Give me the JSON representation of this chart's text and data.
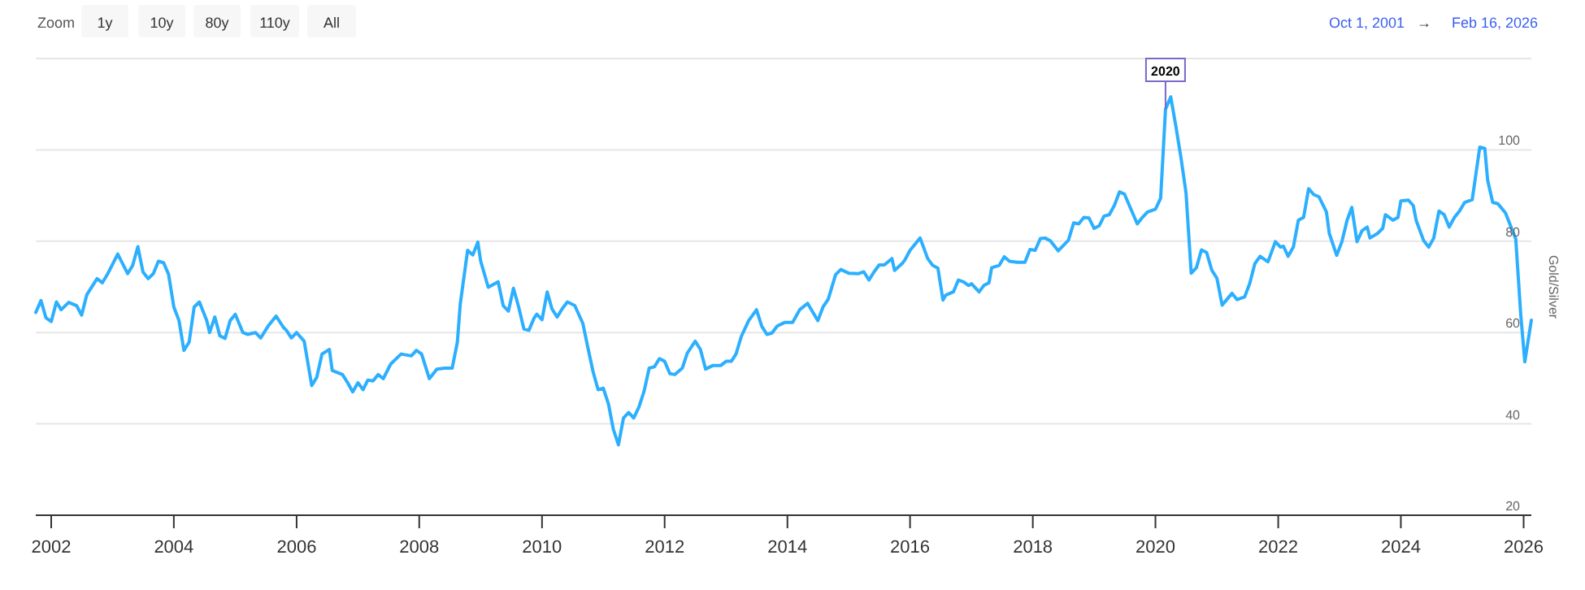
{
  "chart_data": {
    "type": "line",
    "ylabel": "Gold/Silver",
    "x": [
      "2001-10-01",
      "2001-11-01",
      "2001-12-01",
      "2002-01-01",
      "2002-02-01",
      "2002-03-01",
      "2002-04-15",
      "2002-06-01",
      "2002-07-01",
      "2002-08-01",
      "2002-10-01",
      "2002-11-01",
      "2002-12-01",
      "2003-02-01",
      "2003-04-01",
      "2003-05-01",
      "2003-06-01",
      "2003-07-01",
      "2003-08-01",
      "2003-09-01",
      "2003-10-01",
      "2003-11-01",
      "2003-12-01",
      "2004-01-01",
      "2004-02-01",
      "2004-03-01",
      "2004-04-01",
      "2004-05-01",
      "2004-06-01",
      "2004-07-15",
      "2004-08-01",
      "2004-09-01",
      "2004-10-01",
      "2004-11-01",
      "2004-12-01",
      "2005-01-01",
      "2005-02-15",
      "2005-03-15",
      "2005-05-01",
      "2005-06-01",
      "2005-07-15",
      "2005-09-01",
      "2005-10-15",
      "2005-11-01",
      "2005-12-01",
      "2006-01-01",
      "2006-02-15",
      "2006-04-01",
      "2006-05-01",
      "2006-06-01",
      "2006-07-15",
      "2006-08-01",
      "2006-10-01",
      "2006-11-01",
      "2006-12-01",
      "2007-01-01",
      "2007-02-01",
      "2007-03-01",
      "2007-04-01",
      "2007-05-01",
      "2007-06-01",
      "2007-07-15",
      "2007-09-15",
      "2007-11-15",
      "2007-12-15",
      "2008-01-15",
      "2008-03-01",
      "2008-04-15",
      "2008-06-01",
      "2008-07-15",
      "2008-08-15",
      "2008-09-01",
      "2008-10-15",
      "2008-11-15",
      "2008-12-15",
      "2009-01-01",
      "2009-02-15",
      "2009-04-15",
      "2009-05-15",
      "2009-06-15",
      "2009-07-15",
      "2009-08-15",
      "2009-09-15",
      "2009-10-15",
      "2009-11-15",
      "2009-12-01",
      "2010-01-01",
      "2010-02-01",
      "2010-03-01",
      "2010-04-01",
      "2010-05-01",
      "2010-06-01",
      "2010-07-15",
      "2010-09-01",
      "2010-10-01",
      "2010-11-01",
      "2010-12-01",
      "2011-01-01",
      "2011-02-01",
      "2011-03-01",
      "2011-04-01",
      "2011-05-01",
      "2011-06-01",
      "2011-07-01",
      "2011-08-01",
      "2011-09-01",
      "2011-10-01",
      "2011-11-01",
      "2011-12-01",
      "2012-01-01",
      "2012-02-01",
      "2012-03-01",
      "2012-04-15",
      "2012-05-15",
      "2012-07-01",
      "2012-08-01",
      "2012-09-01",
      "2012-10-15",
      "2012-12-01",
      "2013-01-01",
      "2013-02-01",
      "2013-03-01",
      "2013-04-01",
      "2013-05-15",
      "2013-07-01",
      "2013-08-01",
      "2013-09-01",
      "2013-10-01",
      "2013-11-01",
      "2013-12-15",
      "2014-02-01",
      "2014-03-15",
      "2014-05-01",
      "2014-07-01",
      "2014-08-01",
      "2014-09-01",
      "2014-10-15",
      "2014-11-15",
      "2015-01-01",
      "2015-03-01",
      "2015-04-01",
      "2015-05-01",
      "2015-06-01",
      "2015-07-01",
      "2015-08-01",
      "2015-09-15",
      "2015-10-01",
      "2015-11-15",
      "2015-12-01",
      "2016-01-01",
      "2016-03-01",
      "2016-04-15",
      "2016-05-15",
      "2016-06-15",
      "2016-07-15",
      "2016-08-01",
      "2016-09-15",
      "2016-10-15",
      "2016-11-15",
      "2016-12-15",
      "2017-01-01",
      "2017-02-15",
      "2017-03-15",
      "2017-04-15",
      "2017-05-01",
      "2017-06-15",
      "2017-07-15",
      "2017-08-15",
      "2017-10-01",
      "2017-11-15",
      "2017-12-15",
      "2018-01-15",
      "2018-02-15",
      "2018-03-15",
      "2018-04-15",
      "2018-06-01",
      "2018-08-01",
      "2018-09-01",
      "2018-10-01",
      "2018-11-01",
      "2018-12-01",
      "2019-01-01",
      "2019-02-01",
      "2019-03-01",
      "2019-04-01",
      "2019-05-01",
      "2019-06-01",
      "2019-07-01",
      "2019-08-01",
      "2019-09-15",
      "2019-10-15",
      "2019-11-15",
      "2020-01-01",
      "2020-02-01",
      "2020-03-01",
      "2020-04-01",
      "2020-05-01",
      "2020-06-01",
      "2020-07-01",
      "2020-08-01",
      "2020-09-01",
      "2020-10-01",
      "2020-11-01",
      "2020-12-01",
      "2021-01-01",
      "2021-02-01",
      "2021-04-01",
      "2021-05-01",
      "2021-06-15",
      "2021-07-15",
      "2021-08-15",
      "2021-09-15",
      "2021-11-01",
      "2021-12-15",
      "2022-01-15",
      "2022-02-01",
      "2022-03-01",
      "2022-04-01",
      "2022-05-01",
      "2022-06-01",
      "2022-07-01",
      "2022-08-01",
      "2022-09-01",
      "2022-10-15",
      "2022-11-01",
      "2022-12-15",
      "2023-01-15",
      "2023-02-15",
      "2023-03-15",
      "2023-04-15",
      "2023-05-15",
      "2023-06-15",
      "2023-07-01",
      "2023-08-15",
      "2023-09-15",
      "2023-10-01",
      "2023-11-15",
      "2023-12-15",
      "2024-01-01",
      "2024-02-15",
      "2024-03-15",
      "2024-04-01",
      "2024-05-15",
      "2024-06-15",
      "2024-07-15",
      "2024-08-15",
      "2024-09-15",
      "2024-10-15",
      "2024-11-15",
      "2024-12-15",
      "2025-01-15",
      "2025-03-01",
      "2025-04-15",
      "2025-05-15",
      "2025-06-01",
      "2025-07-01",
      "2025-08-01",
      "2025-09-15",
      "2025-10-15",
      "2025-11-15",
      "2025-12-15",
      "2026-01-08",
      "2026-02-16"
    ],
    "series": [
      {
        "color": "#2caffe",
        "values": [
          64.4,
          67,
          63.2,
          62.4,
          66.7,
          65,
          66.6,
          65.9,
          63.8,
          68.3,
          71.8,
          70.9,
          72.7,
          77.2,
          72.9,
          74.7,
          78.8,
          73.3,
          71.8,
          72.9,
          75.6,
          75.3,
          72.7,
          65.6,
          62.6,
          56.1,
          57.9,
          65.6,
          66.7,
          62.6,
          60,
          63.4,
          59.3,
          58.7,
          62.6,
          64,
          60,
          59.6,
          60,
          58.8,
          61.4,
          63.6,
          61.1,
          60.5,
          58.8,
          60,
          58.1,
          48.4,
          50.2,
          55.3,
          56.3,
          51.7,
          50.8,
          49,
          47,
          49,
          47.5,
          49.6,
          49.4,
          50.8,
          49.9,
          53.1,
          55.3,
          54.9,
          56.1,
          55.3,
          49.9,
          52,
          52.2,
          52.2,
          57.9,
          66.2,
          78,
          77,
          79.8,
          75.6,
          69.9,
          71.1,
          65.9,
          64.7,
          69.7,
          65.6,
          60.8,
          60.5,
          63.2,
          64,
          62.8,
          68.9,
          65.2,
          63.4,
          65.2,
          66.7,
          65.9,
          62,
          56.7,
          51.4,
          47.5,
          47.8,
          44.3,
          38.9,
          35.4,
          41.3,
          42.5,
          41.3,
          43.7,
          47.2,
          52.2,
          52.5,
          54.3,
          53.7,
          51,
          50.8,
          52.2,
          55.5,
          58.1,
          56.3,
          52,
          52.8,
          52.8,
          53.7,
          53.7,
          55.3,
          59.1,
          62.6,
          65,
          61.4,
          59.6,
          59.9,
          61.4,
          62.2,
          62.2,
          65,
          66.4,
          62.6,
          65.6,
          67.3,
          72.7,
          73.8,
          73,
          72.9,
          73.3,
          71.5,
          73.3,
          74.8,
          74.8,
          76.2,
          73.6,
          75.1,
          75.9,
          78,
          80.7,
          76.2,
          74.7,
          74.1,
          67.1,
          68.2,
          68.9,
          71.5,
          71.1,
          70.3,
          70.7,
          68.9,
          70.3,
          70.9,
          74.2,
          74.7,
          76.6,
          75.6,
          75.4,
          75.4,
          78.2,
          78,
          80.6,
          80.7,
          80.1,
          77.9,
          80.2,
          84,
          83.8,
          85.2,
          85.1,
          82.8,
          83.4,
          85.5,
          85.8,
          87.8,
          90.8,
          90.3,
          87.6,
          83.8,
          85.2,
          86.4,
          87,
          89.4,
          108.9,
          111.6,
          105.3,
          98.3,
          90.6,
          73,
          74.2,
          78.1,
          77.5,
          73.7,
          71.9,
          66,
          68.6,
          67.2,
          67.8,
          70.7,
          75.1,
          76.7,
          75.5,
          79.9,
          78.7,
          78.9,
          76.7,
          78.7,
          84.6,
          85.2,
          91.5,
          90.2,
          89.7,
          86.4,
          81.7,
          76.9,
          79.9,
          84.6,
          87.4,
          79.9,
          82.3,
          83.1,
          80.7,
          81.7,
          82.8,
          85.8,
          84.6,
          85.2,
          88.8,
          89,
          87.8,
          84.6,
          80.2,
          78.7,
          80.7,
          86.6,
          85.8,
          83.1,
          85.2,
          86.6,
          88.5,
          89.1,
          100.6,
          100.3,
          93.3,
          88.5,
          88.2,
          86.2,
          83.4,
          80.5,
          63.9,
          53.6,
          62.7
        ]
      }
    ],
    "xlim": [
      "2001-10-01",
      "2026-02-16"
    ],
    "xticks": [
      {
        "value": "2002-01-01",
        "label": "2002"
      },
      {
        "value": "2004-01-01",
        "label": "2004"
      },
      {
        "value": "2006-01-01",
        "label": "2006"
      },
      {
        "value": "2008-01-01",
        "label": "2008"
      },
      {
        "value": "2010-01-01",
        "label": "2010"
      },
      {
        "value": "2012-01-01",
        "label": "2012"
      },
      {
        "value": "2014-01-01",
        "label": "2014"
      },
      {
        "value": "2016-01-01",
        "label": "2016"
      },
      {
        "value": "2018-01-01",
        "label": "2018"
      },
      {
        "value": "2020-01-01",
        "label": "2020"
      },
      {
        "value": "2022-01-01",
        "label": "2022"
      },
      {
        "value": "2024-01-01",
        "label": "2024"
      },
      {
        "value": "2026-01-01",
        "label": "2026"
      }
    ],
    "ylim": [
      20,
      120
    ],
    "yticks": [
      20,
      40,
      60,
      80,
      100,
      {
        "value": 120,
        "label": null
      }
    ],
    "grid": "y",
    "marker": "none",
    "line_style": "solid",
    "annotations": [
      "Zoom",
      "1y",
      "10y",
      "80y",
      "110y",
      "All",
      "Oct 1, 2001",
      "→",
      "Feb 16, 2026",
      {
        "text": "2020",
        "x": "2020-03-01",
        "y": 108.9
      }
    ]
  }
}
